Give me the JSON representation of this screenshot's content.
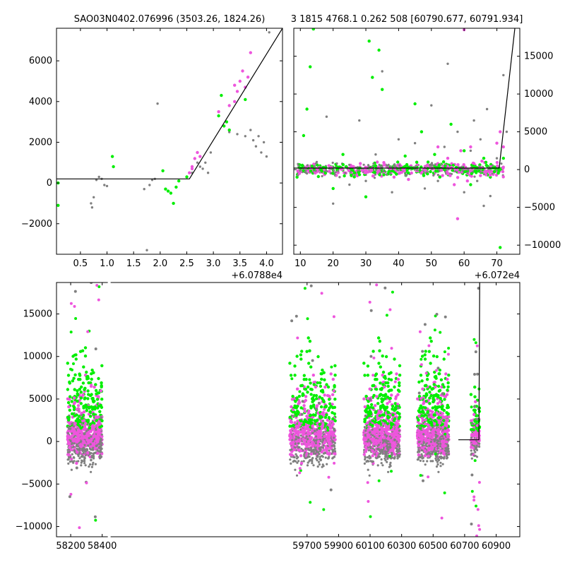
{
  "chart_data": [
    {
      "type": "scatter",
      "title": "SAO03N0402.076996 (3503.26, 1824.26)",
      "offset_label": "+6.0788e4",
      "xlim": [
        0.05,
        4.3
      ],
      "ylim": [
        -3500,
        7600
      ],
      "x_ticks": [
        0.5,
        1.0,
        1.5,
        2.0,
        2.5,
        3.0,
        3.5,
        4.0
      ],
      "x_tick_labels": [
        "0.5",
        "1.0",
        "1.5",
        "2.0",
        "2.5",
        "3.0",
        "3.5",
        "4.0"
      ],
      "y_ticks": [
        -2000,
        0,
        2000,
        4000,
        6000
      ],
      "y_tick_labels": [
        "−2000",
        "0",
        "2000",
        "4000",
        "6000"
      ],
      "model_line": [
        [
          0.05,
          200
        ],
        [
          2.55,
          200
        ],
        [
          4.3,
          7600
        ]
      ],
      "series": [
        {
          "color": "#808080",
          "points": [
            [
              0.7,
              -1000
            ],
            [
              0.72,
              -1200
            ],
            [
              0.75,
              -700
            ],
            [
              0.8,
              150
            ],
            [
              0.85,
              300
            ],
            [
              0.9,
              200
            ],
            [
              0.95,
              -100
            ],
            [
              1.0,
              -150
            ],
            [
              1.75,
              -3300
            ],
            [
              1.7,
              -300
            ],
            [
              1.8,
              -100
            ],
            [
              1.85,
              150
            ],
            [
              1.9,
              200
            ],
            [
              1.95,
              3900
            ],
            [
              2.6,
              500
            ],
            [
              2.7,
              1000
            ],
            [
              2.75,
              800
            ],
            [
              2.8,
              700
            ],
            [
              2.85,
              1000
            ],
            [
              2.9,
              500
            ],
            [
              2.95,
              1500
            ],
            [
              3.3,
              2500
            ],
            [
              3.45,
              2400
            ],
            [
              3.6,
              2300
            ],
            [
              3.75,
              2100
            ],
            [
              3.8,
              1800
            ],
            [
              3.85,
              2300
            ],
            [
              3.9,
              1500
            ],
            [
              3.95,
              2000
            ],
            [
              4.0,
              1300
            ],
            [
              4.05,
              7400
            ],
            [
              3.7,
              2600
            ]
          ]
        },
        {
          "color": "#00ee00",
          "points": [
            [
              0.08,
              0
            ],
            [
              0.08,
              -1100
            ],
            [
              1.1,
              1300
            ],
            [
              1.12,
              800
            ],
            [
              2.05,
              600
            ],
            [
              2.1,
              -300
            ],
            [
              2.15,
              -400
            ],
            [
              2.2,
              -500
            ],
            [
              2.25,
              -1000
            ],
            [
              2.3,
              -200
            ],
            [
              2.35,
              100
            ],
            [
              2.5,
              300
            ],
            [
              3.1,
              3300
            ],
            [
              3.15,
              4300
            ],
            [
              3.2,
              2800
            ],
            [
              3.25,
              3000
            ],
            [
              3.3,
              2600
            ],
            [
              3.6,
              4100
            ]
          ]
        },
        {
          "color": "#ee55dd",
          "points": [
            [
              2.55,
              500
            ],
            [
              2.6,
              800
            ],
            [
              2.65,
              1200
            ],
            [
              2.7,
              1500
            ],
            [
              2.75,
              1300
            ],
            [
              3.1,
              3500
            ],
            [
              3.4,
              4000
            ],
            [
              3.45,
              4500
            ],
            [
              3.5,
              5000
            ],
            [
              3.55,
              5500
            ],
            [
              3.6,
              4700
            ],
            [
              3.65,
              5200
            ],
            [
              3.7,
              6400
            ],
            [
              3.4,
              4800
            ],
            [
              3.3,
              3800
            ],
            [
              2.6,
              700
            ]
          ]
        }
      ]
    },
    {
      "type": "scatter",
      "title": "3 1815 4768.1 0.262 508 [60790.677, 60791.934]",
      "offset_label": "+6.072e4",
      "xlim": [
        8,
        77
      ],
      "ylim": [
        -11200,
        18700
      ],
      "x_ticks": [
        10,
        20,
        30,
        40,
        50,
        60,
        70
      ],
      "x_tick_labels": [
        "10",
        "20",
        "30",
        "40",
        "50",
        "60",
        "70"
      ],
      "y_ticks": [
        -10000,
        -5000,
        0,
        5000,
        10000,
        15000
      ],
      "y_tick_labels": [
        "−10000",
        "−5000",
        "0",
        "5000",
        "10000",
        "15000"
      ],
      "model_line": [
        [
          8,
          200
        ],
        [
          70.7,
          200
        ],
        [
          75.5,
          18700
        ]
      ],
      "series": [
        {
          "color": "#808080",
          "points": [
            [
              12,
              -500
            ],
            [
              15,
              1000
            ],
            [
              18,
              7000
            ],
            [
              20,
              -4500
            ],
            [
              22,
              -1000
            ],
            [
              25,
              -2000
            ],
            [
              28,
              6500
            ],
            [
              30,
              -1500
            ],
            [
              33,
              2000
            ],
            [
              35,
              13000
            ],
            [
              38,
              -3000
            ],
            [
              40,
              4000
            ],
            [
              42,
              -500
            ],
            [
              45,
              3500
            ],
            [
              48,
              -2500
            ],
            [
              50,
              8500
            ],
            [
              52,
              -1500
            ],
            [
              54,
              3000
            ],
            [
              55,
              14000
            ],
            [
              57,
              -2000
            ],
            [
              58,
              5000
            ],
            [
              60,
              -3000
            ],
            [
              62,
              2500
            ],
            [
              63,
              6500
            ],
            [
              64,
              -1500
            ],
            [
              65,
              4000
            ],
            [
              66,
              -4800
            ],
            [
              67,
              8000
            ],
            [
              68,
              -3500
            ],
            [
              70,
              1500
            ],
            [
              72,
              12500
            ],
            [
              73,
              5000
            ],
            [
              14,
              400
            ],
            [
              24,
              300
            ],
            [
              36,
              -300
            ],
            [
              46,
              600
            ]
          ]
        },
        {
          "color": "#00ee00",
          "points": [
            [
              9,
              -1000
            ],
            [
              11,
              4500
            ],
            [
              12,
              8000
            ],
            [
              13,
              13600
            ],
            [
              14,
              18600
            ],
            [
              16,
              500
            ],
            [
              20,
              -2500
            ],
            [
              23,
              2000
            ],
            [
              30,
              -3600
            ],
            [
              31,
              17000
            ],
            [
              32,
              12200
            ],
            [
              33,
              500
            ],
            [
              34,
              15800
            ],
            [
              35,
              10600
            ],
            [
              38,
              -200
            ],
            [
              42,
              1800
            ],
            [
              45,
              8700
            ],
            [
              47,
              5000
            ],
            [
              49,
              1000
            ],
            [
              51,
              2000
            ],
            [
              53,
              700
            ],
            [
              56,
              6000
            ],
            [
              58,
              -300
            ],
            [
              60,
              2500
            ],
            [
              62,
              -2000
            ],
            [
              64,
              200
            ],
            [
              66,
              1500
            ],
            [
              68,
              -1000
            ],
            [
              71,
              -10300
            ],
            [
              72,
              1500
            ]
          ]
        },
        {
          "color": "#ee55dd",
          "points": [
            [
              30,
              0
            ],
            [
              35,
              500
            ],
            [
              40,
              -500
            ],
            [
              45,
              200
            ],
            [
              50,
              600
            ],
            [
              52,
              3000
            ],
            [
              55,
              1500
            ],
            [
              57,
              -2000
            ],
            [
              58,
              -6500
            ],
            [
              59,
              2500
            ],
            [
              60,
              18500
            ],
            [
              61,
              -1500
            ],
            [
              62,
              3000
            ],
            [
              63,
              800
            ],
            [
              65,
              -800
            ],
            [
              70,
              3500
            ],
            [
              71,
              5000
            ],
            [
              72,
              3000
            ],
            [
              25,
              200
            ],
            [
              15,
              -300
            ]
          ]
        }
      ]
    },
    {
      "type": "scatter",
      "title": "",
      "xlim": [
        58110,
        61050
      ],
      "ylim": [
        -11200,
        18700
      ],
      "x_breaks": [
        58440,
        59580
      ],
      "x_ticks": [
        58200,
        58400,
        59700,
        59900,
        60100,
        60300,
        60500,
        60700,
        60900
      ],
      "x_tick_labels": [
        "58200",
        "58400",
        "59700",
        "59900",
        "60100",
        "60300",
        "60500",
        "60700",
        "60900"
      ],
      "y_ticks": [
        -10000,
        -5000,
        0,
        5000,
        10000,
        15000
      ],
      "y_tick_labels": [
        "−10000",
        "−5000",
        "0",
        "5000",
        "10000",
        "15000"
      ],
      "model_line": [
        [
          60660,
          200
        ],
        [
          60790.7,
          200
        ],
        [
          60795.5,
          18700
        ]
      ],
      "clusters": [
        {
          "x0": 58180,
          "x1": 58400
        },
        {
          "x0": 59590,
          "x1": 59880
        },
        {
          "x0": 60060,
          "x1": 60290
        },
        {
          "x0": 60400,
          "x1": 60600
        },
        {
          "x0": 60740,
          "x1": 60795
        }
      ],
      "series_colors": [
        "#808080",
        "#00ee00",
        "#ee55dd"
      ]
    }
  ]
}
